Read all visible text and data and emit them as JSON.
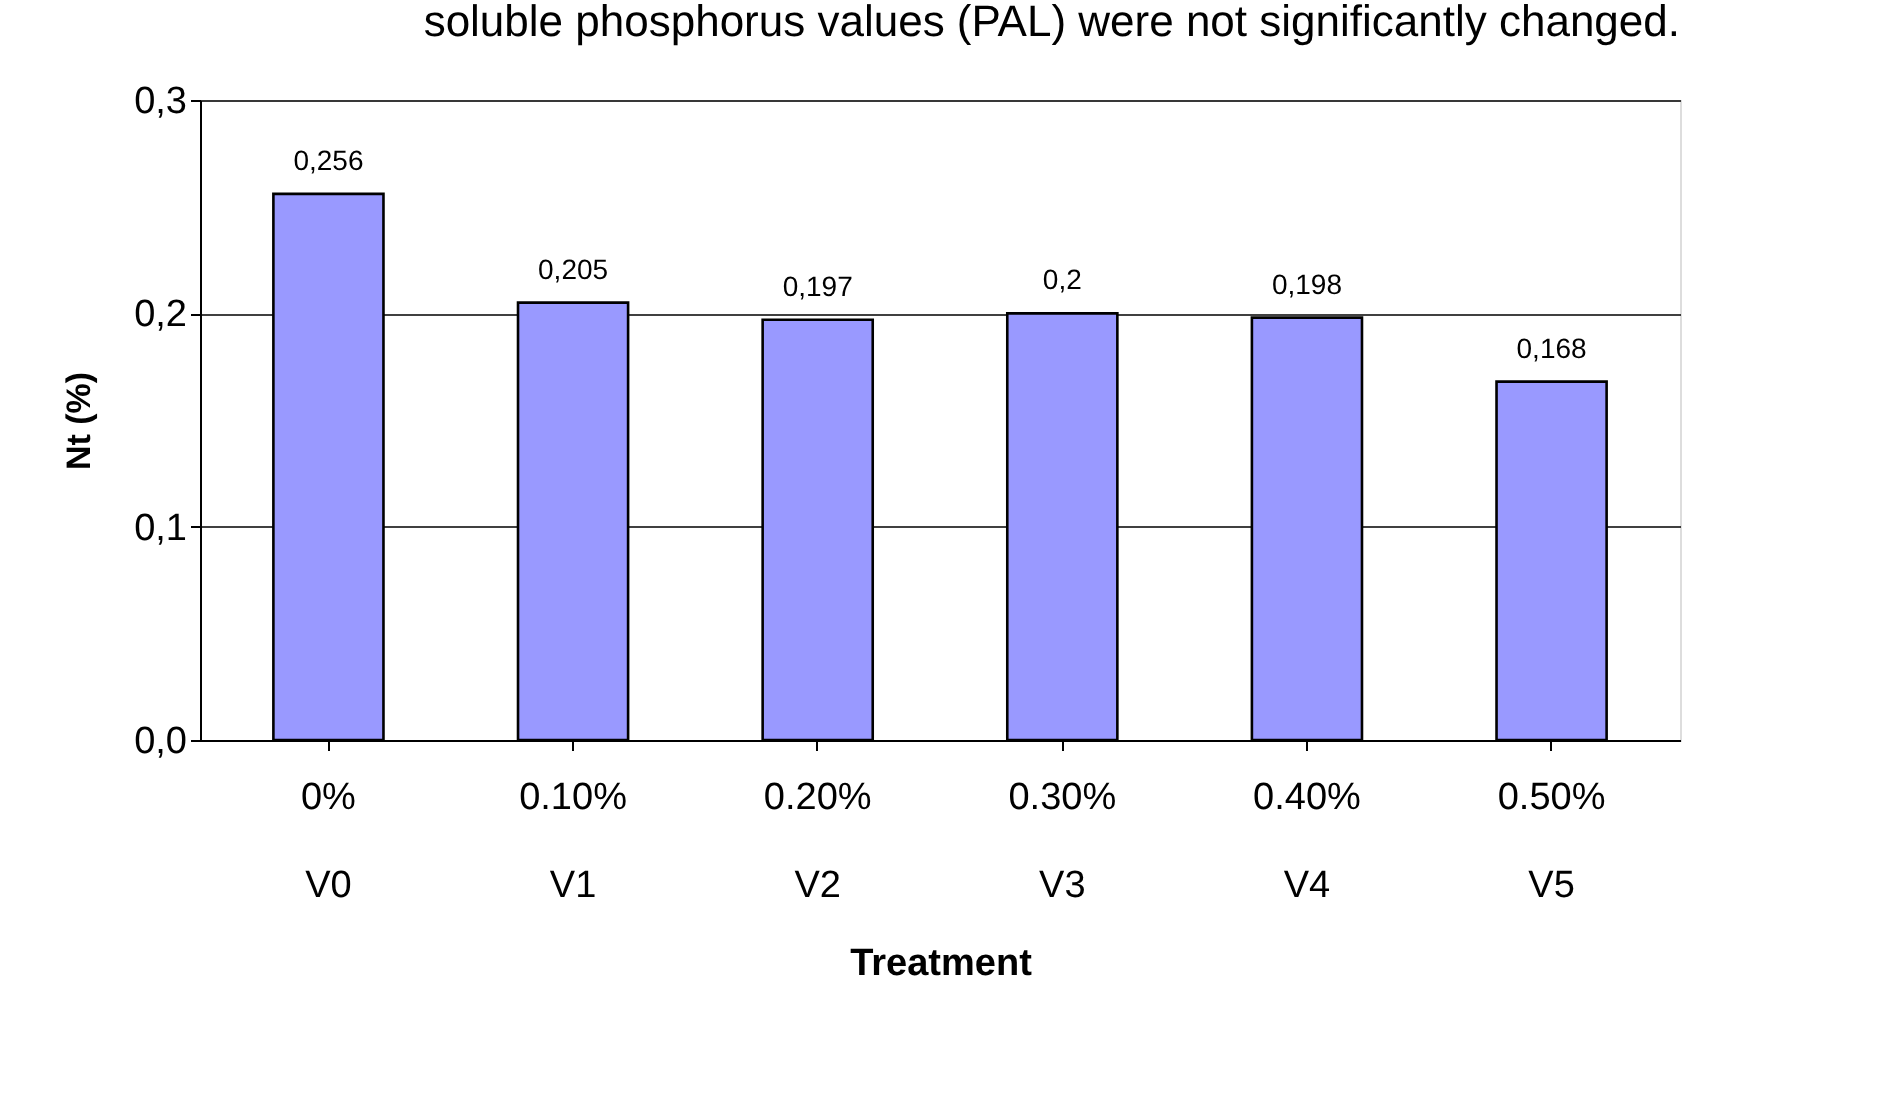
{
  "chart_data": {
    "type": "bar",
    "title": "soluble phosphorus values (PAL) were not significantly changed.",
    "xlabel": "Treatment",
    "ylabel": "Nt (%)",
    "categories": [
      "0%\nV0",
      "0.10%\nV1",
      "0.20%\nV2",
      "0.30%\nV3",
      "0.40%\nV4",
      "0.50%\nV5"
    ],
    "values": [
      0.256,
      0.205,
      0.197,
      0.2,
      0.198,
      0.168
    ],
    "value_labels": [
      "0,256",
      "0,205",
      "0,197",
      "0,2",
      "0,198",
      "0,168"
    ],
    "color": "#9999ff",
    "ylim": [
      0,
      0.3
    ],
    "yticks": [
      {
        "value": 0,
        "label": "0,0"
      },
      {
        "value": 0.1,
        "label": "0,1"
      },
      {
        "value": 0.2,
        "label": "0,2"
      },
      {
        "value": 0.3,
        "label": "0,3"
      }
    ],
    "grid": "y"
  }
}
